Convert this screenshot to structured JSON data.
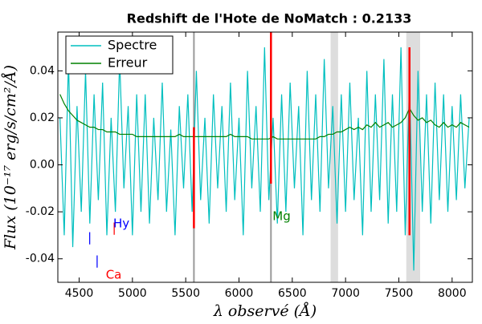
{
  "chart_data": {
    "type": "line",
    "title": "Redshift de l'Hote de NoMatch : 0.2133",
    "x_label": "λ observé (Å)",
    "y_label": "Flux (10⁻¹⁷ erg/s/cm²/Å)",
    "xlim": [
      4300,
      8190
    ],
    "ylim": [
      -0.05,
      0.0565
    ],
    "xticks": [
      4500,
      5000,
      5500,
      6000,
      6500,
      7000,
      7500,
      8000
    ],
    "yticks": [
      -0.04,
      -0.02,
      {
        "value": 0,
        "label": "0.00"
      },
      0.02,
      0.04
    ],
    "legend": "upper left",
    "x": [
      4320,
      4360,
      4400,
      4440,
      4480,
      4520,
      4560,
      4600,
      4640,
      4680,
      4720,
      4760,
      4800,
      4840,
      4880,
      4920,
      4960,
      5000,
      5040,
      5080,
      5120,
      5160,
      5200,
      5240,
      5280,
      5320,
      5360,
      5400,
      5440,
      5480,
      5520,
      5560,
      5600,
      5640,
      5680,
      5720,
      5760,
      5800,
      5840,
      5880,
      5920,
      5960,
      6000,
      6040,
      6080,
      6120,
      6160,
      6200,
      6240,
      6280,
      6320,
      6360,
      6400,
      6440,
      6480,
      6520,
      6560,
      6600,
      6640,
      6680,
      6720,
      6760,
      6800,
      6840,
      6880,
      6920,
      6960,
      7000,
      7040,
      7080,
      7120,
      7160,
      7200,
      7240,
      7280,
      7320,
      7360,
      7400,
      7440,
      7480,
      7520,
      7560,
      7600,
      7640,
      7680,
      7720,
      7760,
      7800,
      7840,
      7880,
      7920,
      7960,
      8000,
      8040,
      8080,
      8120,
      8160
    ],
    "series": [
      {
        "name": "Spectre",
        "color": "#00bfbf",
        "values": [
          0.02,
          -0.03,
          0.045,
          -0.035,
          0.025,
          -0.02,
          0.04,
          -0.025,
          0.03,
          -0.015,
          0.035,
          -0.03,
          0.02,
          -0.02,
          0.045,
          -0.01,
          0.025,
          -0.03,
          0.03,
          -0.02,
          0.03,
          -0.025,
          0.02,
          -0.015,
          0.035,
          -0.02,
          0.015,
          -0.03,
          0.025,
          -0.01,
          0.03,
          -0.02,
          0.04,
          -0.015,
          0.02,
          -0.025,
          0.03,
          -0.01,
          0.025,
          -0.02,
          0.035,
          -0.015,
          0.02,
          -0.03,
          0.04,
          -0.01,
          0.025,
          -0.02,
          0.05,
          -0.015,
          0.02,
          -0.025,
          0.03,
          -0.02,
          0.035,
          -0.01,
          0.025,
          -0.03,
          0.04,
          -0.015,
          0.03,
          -0.02,
          0.045,
          -0.01,
          0.025,
          -0.025,
          0.03,
          -0.02,
          0.035,
          -0.015,
          0.02,
          -0.03,
          0.04,
          -0.02,
          0.03,
          -0.015,
          0.045,
          -0.025,
          0.03,
          -0.02,
          0.05,
          -0.03,
          0.035,
          -0.045,
          0.04,
          -0.02,
          0.03,
          -0.025,
          0.035,
          -0.015,
          0.03,
          -0.02,
          0.025,
          -0.015,
          0.03,
          -0.01,
          0.02
        ]
      },
      {
        "name": "Erreur",
        "color": "#008000",
        "values": [
          0.03,
          0.026,
          0.023,
          0.021,
          0.019,
          0.018,
          0.017,
          0.016,
          0.016,
          0.015,
          0.015,
          0.014,
          0.014,
          0.014,
          0.013,
          0.013,
          0.013,
          0.013,
          0.012,
          0.012,
          0.012,
          0.012,
          0.012,
          0.012,
          0.012,
          0.012,
          0.012,
          0.012,
          0.013,
          0.012,
          0.012,
          0.012,
          0.012,
          0.012,
          0.012,
          0.012,
          0.012,
          0.012,
          0.012,
          0.012,
          0.013,
          0.012,
          0.012,
          0.012,
          0.012,
          0.011,
          0.011,
          0.011,
          0.011,
          0.011,
          0.012,
          0.011,
          0.011,
          0.011,
          0.011,
          0.011,
          0.011,
          0.011,
          0.011,
          0.011,
          0.011,
          0.012,
          0.012,
          0.013,
          0.013,
          0.014,
          0.014,
          0.015,
          0.016,
          0.015,
          0.016,
          0.015,
          0.017,
          0.016,
          0.018,
          0.016,
          0.017,
          0.018,
          0.016,
          0.017,
          0.018,
          0.02,
          0.024,
          0.021,
          0.019,
          0.02,
          0.018,
          0.019,
          0.017,
          0.016,
          0.018,
          0.016,
          0.017,
          0.016,
          0.018,
          0.017,
          0.016
        ]
      }
    ],
    "bands": [
      [
        6860,
        6930
      ],
      [
        7570,
        7700
      ]
    ],
    "band_color": "#dddddd",
    "vlines": [
      5577,
      6300
    ],
    "vline_color": "#999999",
    "segments": [
      {
        "x": 5577,
        "y": [
          -0.027,
          0.016
        ]
      },
      {
        "x": 6300,
        "y": [
          -0.008,
          0.0565
        ]
      },
      {
        "x": 7600,
        "y": [
          -0.03,
          0.05
        ]
      }
    ],
    "segment_color": "#ff0000",
    "annotations": [
      {
        "text": "|",
        "x": 4580,
        "y": -0.031,
        "color": "#0000ff"
      },
      {
        "text": "|",
        "x": 4650,
        "y": -0.041,
        "color": "#0000ff"
      },
      {
        "text": "|",
        "x": 4810,
        "y": -0.027,
        "color": "#ff0000"
      },
      {
        "text": "Hy",
        "x": 4820,
        "y": -0.025,
        "color": "#0000ff"
      },
      {
        "text": "Ca",
        "x": 4750,
        "y": -0.047,
        "color": "#ff0000"
      },
      {
        "text": "Mg",
        "x": 6315,
        "y": -0.022,
        "color": "#008000"
      }
    ]
  }
}
